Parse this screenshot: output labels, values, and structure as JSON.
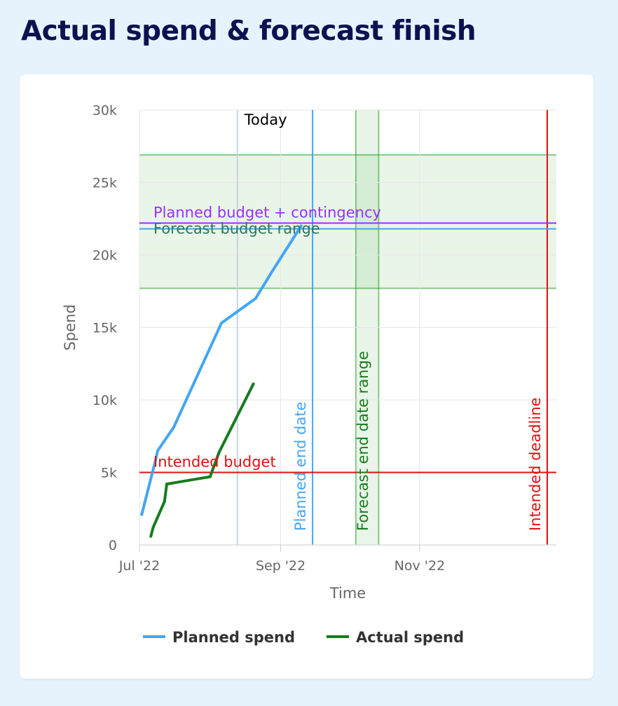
{
  "page": {
    "title": "Actual spend & forecast finish"
  },
  "chart_data": {
    "type": "line",
    "xlabel": "Time",
    "ylabel": "Spend",
    "x_range": [
      "2022-07-01",
      "2022-12-31"
    ],
    "ylim": [
      0,
      30000
    ],
    "y_ticks": [
      {
        "value": 0,
        "label": "0"
      },
      {
        "value": 5000,
        "label": "5k"
      },
      {
        "value": 10000,
        "label": "10k"
      },
      {
        "value": 15000,
        "label": "15k"
      },
      {
        "value": 20000,
        "label": "20k"
      },
      {
        "value": 25000,
        "label": "25k"
      },
      {
        "value": 30000,
        "label": "30k"
      }
    ],
    "x_ticks": [
      {
        "date": "2022-07-01",
        "label": "Jul '22"
      },
      {
        "date": "2022-09-01",
        "label": "Sep '22"
      },
      {
        "date": "2022-11-01",
        "label": "Nov '22"
      }
    ],
    "grid": true,
    "series": [
      {
        "name": "Planned spend",
        "color": "#42a5f5",
        "points": [
          {
            "x": "2022-07-02",
            "y": 2100
          },
          {
            "x": "2022-07-08",
            "y": 5800
          },
          {
            "x": "2022-07-09",
            "y": 6500
          },
          {
            "x": "2022-07-16",
            "y": 8100
          },
          {
            "x": "2022-08-06",
            "y": 15300
          },
          {
            "x": "2022-08-21",
            "y": 17000
          },
          {
            "x": "2022-08-28",
            "y": 18800
          },
          {
            "x": "2022-09-10",
            "y": 22000
          }
        ]
      },
      {
        "name": "Actual spend",
        "color": "#167c1d",
        "points": [
          {
            "x": "2022-07-06",
            "y": 600
          },
          {
            "x": "2022-07-07",
            "y": 1200
          },
          {
            "x": "2022-07-12",
            "y": 3000
          },
          {
            "x": "2022-07-13",
            "y": 4200
          },
          {
            "x": "2022-08-01",
            "y": 4700
          },
          {
            "x": "2022-08-05",
            "y": 6400
          },
          {
            "x": "2022-08-20",
            "y": 11100
          }
        ]
      }
    ],
    "bands": [
      {
        "axis": "y",
        "from": 17700,
        "to": 26900,
        "color": "#2ca02c"
      },
      {
        "axis": "x",
        "from": "2022-10-04",
        "to": "2022-10-14",
        "color": "#2ca02c"
      }
    ],
    "h_lines": [
      {
        "y": 22200,
        "color": "#9b30ff"
      },
      {
        "y": 21800,
        "color": "#42a5f5"
      },
      {
        "y": 5000,
        "color": "#e01010"
      }
    ],
    "v_lines": [
      {
        "x": "2022-08-13",
        "color": "#c9d3e0"
      },
      {
        "x": "2022-09-15",
        "color": "#42a5f5"
      },
      {
        "x": "2022-12-27",
        "color": "#e01010"
      }
    ],
    "annotations": {
      "today": "Today",
      "contingency": "Planned budget + contingency",
      "forecast_budget": "Forecast budget range",
      "intended_budget": "Intended budget",
      "planned_end": "Planned end date",
      "forecast_end": "Forecast end date range",
      "intended_deadline": "Intended deadline"
    },
    "annotation_colors": {
      "today": "#000000",
      "contingency": "#9b30ff",
      "forecast_budget": "#2b7a5e",
      "intended_budget": "#e01010",
      "planned_end": "#42a5f5",
      "forecast_end": "#167c1d",
      "intended_deadline": "#e01010"
    },
    "legend": {
      "position": "bottom",
      "items": [
        {
          "label": "Planned spend",
          "color": "#42a5f5"
        },
        {
          "label": "Actual spend",
          "color": "#167c1d"
        }
      ]
    }
  }
}
